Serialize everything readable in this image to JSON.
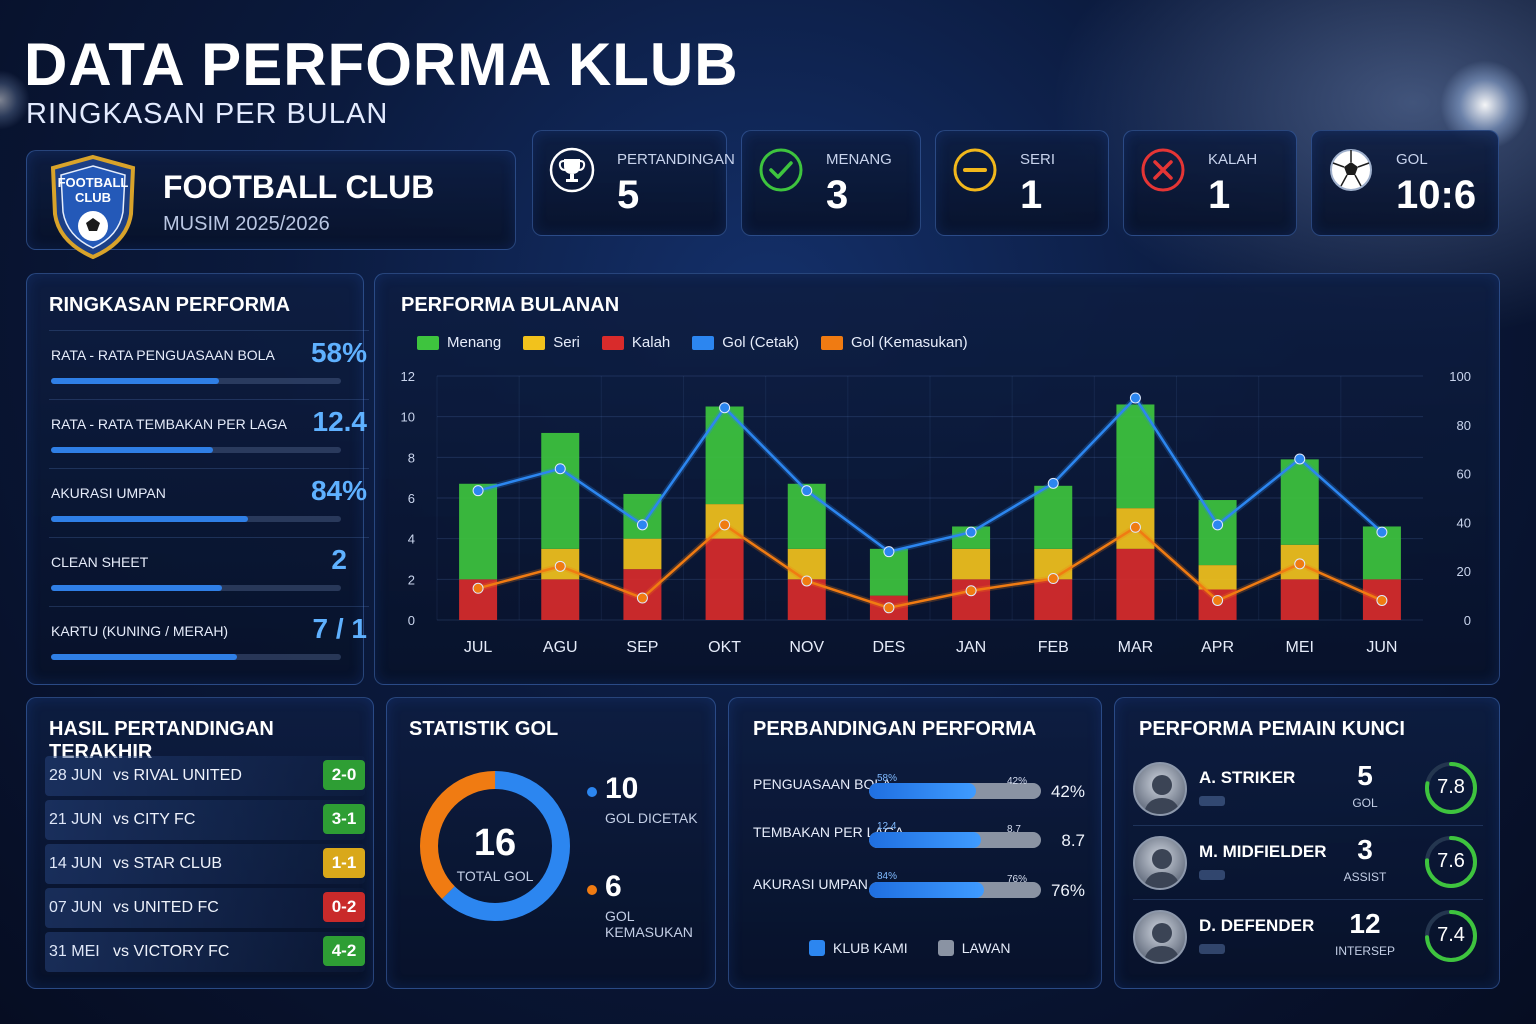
{
  "header": {
    "title": "DATA PERFORMA KLUB",
    "subtitle": "RINGKASAN PER BULAN"
  },
  "club": {
    "badge_line1": "FOOTBALL",
    "badge_line2": "CLUB",
    "name": "FOOTBALL CLUB",
    "season": "MUSIM 2025/2026"
  },
  "stats": [
    {
      "label": "PERTANDINGAN",
      "value": "5",
      "icon": "trophy-icon",
      "color": "#ffffff"
    },
    {
      "label": "MENANG",
      "value": "3",
      "icon": "check-circle-icon",
      "color": "#3ec43e"
    },
    {
      "label": "SERI",
      "value": "1",
      "icon": "minus-circle-icon",
      "color": "#f2b81c"
    },
    {
      "label": "KALAH",
      "value": "1",
      "icon": "x-circle-icon",
      "color": "#e53535"
    },
    {
      "label": "GOL",
      "value": "10:6",
      "icon": "soccer-ball-icon",
      "color": "#ffffff"
    }
  ],
  "summary": {
    "title": "RINGKASAN PERFORMA",
    "rows": [
      {
        "label": "RATA - RATA PENGUASAAN BOLA",
        "value": "58%",
        "fill": 0.58
      },
      {
        "label": "RATA - RATA TEMBAKAN PER LAGA",
        "value": "12.4",
        "fill": 0.56
      },
      {
        "label": "AKURASI UMPAN",
        "value": "84%",
        "fill": 0.68
      },
      {
        "label": "CLEAN SHEET",
        "value": "2",
        "fill": 0.59
      },
      {
        "label": "KARTU (KUNING / MERAH)",
        "value": "7 / 1",
        "fill": 0.64
      }
    ]
  },
  "monthly": {
    "title": "PERFORMA BULANAN",
    "legend": [
      {
        "label": "Menang",
        "color": "#3ec43e"
      },
      {
        "label": "Seri",
        "color": "#f2c21c"
      },
      {
        "label": "Kalah",
        "color": "#d92b2b"
      },
      {
        "label": "Gol (Cetak)",
        "color": "#2c86f0"
      },
      {
        "label": "Gol (Kemasukan)",
        "color": "#f07b12"
      }
    ]
  },
  "chart_data": {
    "type": "bar",
    "title": "PERFORMA BULANAN",
    "categories": [
      "JUL",
      "AGU",
      "SEP",
      "OKT",
      "NOV",
      "DES",
      "JAN",
      "FEB",
      "MAR",
      "APR",
      "MEI",
      "JUN"
    ],
    "ylim": [
      0,
      12
    ],
    "y2lim": [
      0,
      100
    ],
    "yticks": [
      0,
      2,
      4,
      6,
      8,
      10,
      12
    ],
    "y2ticks": [
      0,
      20,
      40,
      60,
      80,
      100
    ],
    "series": [
      {
        "name": "Kalah",
        "kind": "bar-stack",
        "color": "#d92b2b",
        "values": [
          2,
          2,
          2.5,
          4,
          2,
          1.2,
          2,
          2,
          3.5,
          1.5,
          2,
          2
        ]
      },
      {
        "name": "Seri",
        "kind": "bar-stack",
        "color": "#f2c21c",
        "values": [
          0,
          1.5,
          1.5,
          1.7,
          1.5,
          0,
          1.5,
          1.5,
          2,
          1.2,
          1.7,
          0
        ]
      },
      {
        "name": "Menang",
        "kind": "bar-stack",
        "color": "#3ec43e",
        "values": [
          4.7,
          5.7,
          2.2,
          4.8,
          3.2,
          2.3,
          1.1,
          3.1,
          5.1,
          3.2,
          4.2,
          2.6
        ]
      },
      {
        "name": "Gol (Cetak)",
        "kind": "line",
        "axis": "right",
        "color": "#2c86f0",
        "values": [
          53,
          62,
          39,
          87,
          53,
          28,
          36,
          56,
          91,
          39,
          66,
          36
        ]
      },
      {
        "name": "Gol (Kemasukan)",
        "kind": "line",
        "axis": "right",
        "color": "#f07b12",
        "values": [
          13,
          22,
          9,
          39,
          16,
          5,
          12,
          17,
          38,
          8,
          23,
          8
        ]
      }
    ]
  },
  "results": {
    "title": "HASIL PERTANDINGAN TERAKHIR",
    "rows": [
      {
        "date": "28 JUN",
        "opponent": "vs RIVAL UNITED",
        "score": "2-0",
        "color": "#2e9e34"
      },
      {
        "date": "21 JUN",
        "opponent": "vs CITY FC",
        "score": "3-1",
        "color": "#2e9e34"
      },
      {
        "date": "14 JUN",
        "opponent": "vs STAR CLUB",
        "score": "1-1",
        "color": "#d9a81a"
      },
      {
        "date": "07 JUN",
        "opponent": "vs UNITED FC",
        "score": "0-2",
        "color": "#c92a2a"
      },
      {
        "date": "31 MEI",
        "opponent": "vs VICTORY FC",
        "score": "4-2",
        "color": "#2e9e34"
      }
    ]
  },
  "goals": {
    "title": "STATISTIK GOL",
    "total": "16",
    "total_label": "TOTAL GOL",
    "scored": "10",
    "scored_label": "GOL DICETAK",
    "conceded": "6",
    "conceded_label": "GOL KEMASUKAN",
    "scored_color": "#2c86f0",
    "conceded_color": "#f07b12"
  },
  "comparison": {
    "title": "PERBANDINGAN PERFORMA",
    "rows": [
      {
        "label": "PENGUASAAN BOLA",
        "ours": "58%",
        "opp": "42%",
        "opp_value": "42%",
        "fill": 0.62
      },
      {
        "label": "TEMBAKAN PER LAGA",
        "ours": "12.4",
        "opp": "8.7",
        "opp_value": "8.7",
        "fill": 0.65
      },
      {
        "label": "AKURASI UMPAN",
        "ours": "84%",
        "opp": "76%",
        "opp_value": "76%",
        "fill": 0.67
      }
    ],
    "legend_ours": "KLUB KAMI",
    "legend_opp": "LAWAN",
    "ours_color": "#2c86f0",
    "opp_color": "#8a93a3"
  },
  "players": {
    "title": "PERFORMA PEMAIN KUNCI",
    "rows": [
      {
        "name": "A. STRIKER",
        "stat": "5",
        "stat_label": "GOL",
        "rating": "7.8",
        "rating_fill": 0.78
      },
      {
        "name": "M. MIDFIELDER",
        "stat": "3",
        "stat_label": "ASSIST",
        "rating": "7.6",
        "rating_fill": 0.76
      },
      {
        "name": "D. DEFENDER",
        "stat": "12",
        "stat_label": "INTERSEP",
        "rating": "7.4",
        "rating_fill": 0.74
      }
    ]
  }
}
